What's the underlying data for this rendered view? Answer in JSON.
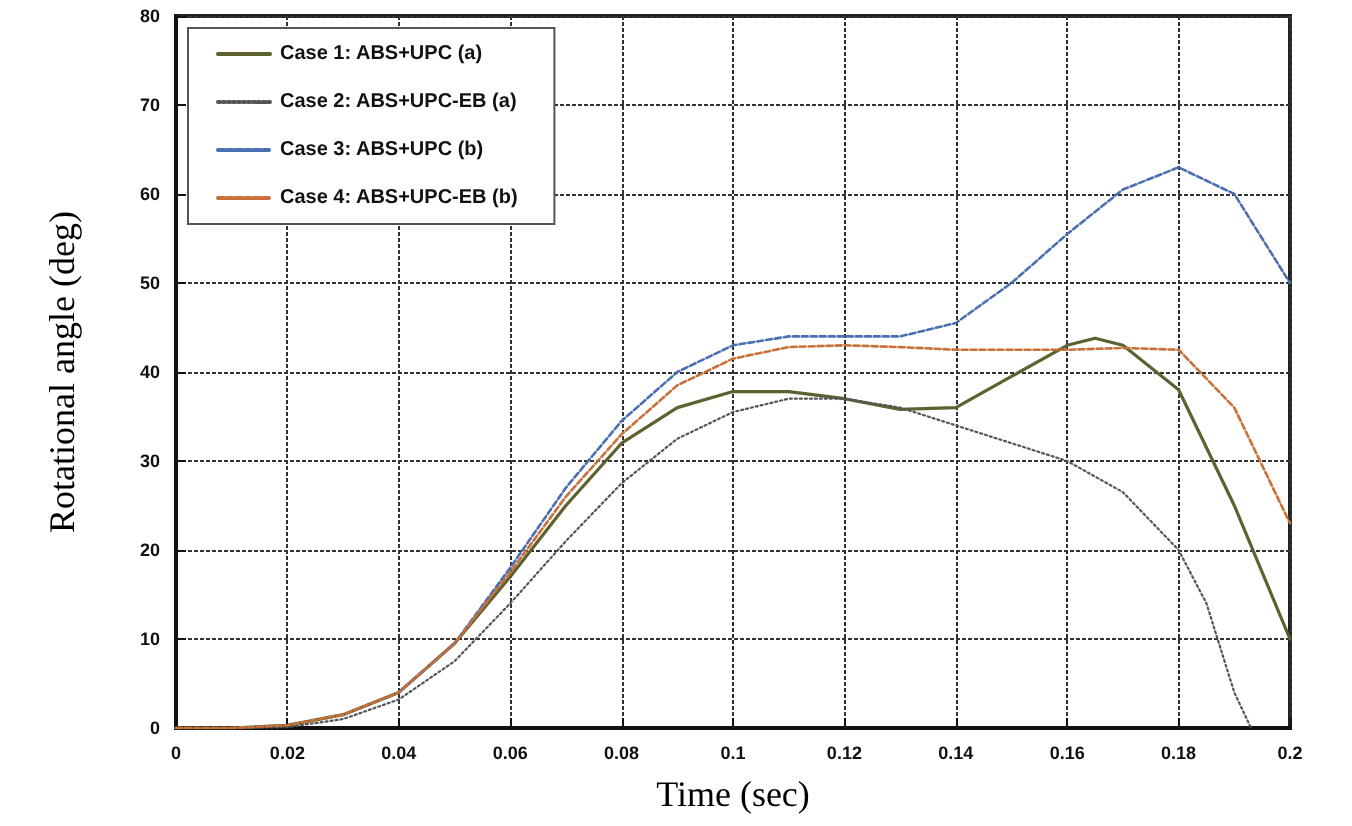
{
  "chart_data": {
    "type": "line",
    "xlabel": "Time (sec)",
    "ylabel": "Rotational angle (deg)",
    "xlim": [
      0,
      0.2
    ],
    "xticks": [
      0,
      0.02,
      0.04,
      0.06,
      0.08,
      0.1,
      0.12,
      0.14,
      0.16,
      0.18,
      0.2
    ],
    "ylim": [
      0,
      80
    ],
    "yticks": [
      0,
      10,
      20,
      30,
      40,
      50,
      60,
      70,
      80
    ],
    "grid": true,
    "legend": "top left",
    "marker": "none",
    "series": [
      {
        "name": "Case 1: ABS+UPC (a)",
        "color": "#5e6030",
        "line_style": "solid",
        "x": [
          0,
          0.01,
          0.02,
          0.03,
          0.04,
          0.05,
          0.06,
          0.07,
          0.08,
          0.09,
          0.1,
          0.11,
          0.12,
          0.13,
          0.14,
          0.15,
          0.16,
          0.165,
          0.17,
          0.18,
          0.19,
          0.2
        ],
        "values": [
          0,
          0,
          0.3,
          1.5,
          4,
          9.5,
          17,
          25,
          32,
          36,
          37.8,
          37.8,
          37,
          35.8,
          36,
          39.5,
          43,
          43.8,
          43,
          38,
          25,
          10
        ]
      },
      {
        "name": "Case 2: ABS+UPC-EB (a)",
        "color": "#555555",
        "line_style": "dotted",
        "x": [
          0,
          0.01,
          0.02,
          0.03,
          0.04,
          0.05,
          0.06,
          0.07,
          0.08,
          0.09,
          0.1,
          0.11,
          0.12,
          0.13,
          0.14,
          0.15,
          0.16,
          0.17,
          0.18,
          0.185,
          0.19,
          0.193
        ],
        "values": [
          0,
          0,
          0.1,
          1,
          3.2,
          7.5,
          14,
          21,
          27.5,
          32.5,
          35.5,
          37,
          37,
          36,
          34,
          32,
          30,
          26.5,
          20,
          14,
          4,
          0
        ]
      },
      {
        "name": "Case 3: ABS+UPC (b)",
        "color": "#4a6fb0",
        "line_style": "dashed",
        "x": [
          0.04,
          0.05,
          0.06,
          0.07,
          0.08,
          0.09,
          0.1,
          0.11,
          0.12,
          0.13,
          0.14,
          0.15,
          0.16,
          0.17,
          0.18,
          0.19,
          0.2
        ],
        "values": [
          4,
          9.5,
          18,
          27,
          34.5,
          40,
          43,
          44,
          44,
          44,
          45.5,
          50,
          55.5,
          60.5,
          63,
          60,
          50
        ]
      },
      {
        "name": "Case 4: ABS+UPC-EB (b)",
        "color": "#c8703a",
        "line_style": "dashed",
        "x": [
          0,
          0.01,
          0.02,
          0.03,
          0.04,
          0.05,
          0.06,
          0.07,
          0.08,
          0.09,
          0.1,
          0.11,
          0.12,
          0.13,
          0.14,
          0.15,
          0.16,
          0.17,
          0.18,
          0.19,
          0.2
        ],
        "values": [
          0,
          0,
          0.3,
          1.5,
          4,
          9.5,
          17.5,
          26,
          33,
          38.5,
          41.5,
          42.8,
          43,
          42.8,
          42.5,
          42.5,
          42.5,
          42.7,
          42.5,
          36,
          23
        ]
      }
    ]
  }
}
